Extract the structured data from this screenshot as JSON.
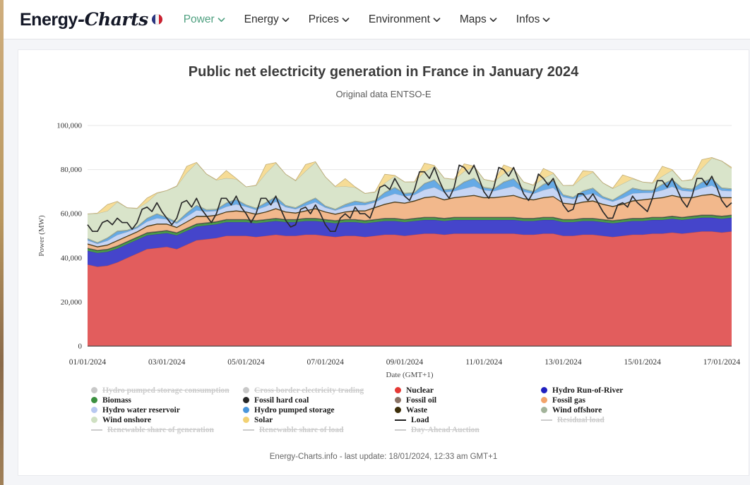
{
  "header": {
    "logo_bold": "Energy",
    "logo_italic": "-Charts",
    "flag": "french-flag",
    "accent_color": "#4fa080",
    "nav": [
      {
        "label": "Power",
        "active": true
      },
      {
        "label": "Energy",
        "active": false
      },
      {
        "label": "Prices",
        "active": false
      },
      {
        "label": "Environment",
        "active": false
      },
      {
        "label": "Maps",
        "active": false
      },
      {
        "label": "Infos",
        "active": false
      }
    ]
  },
  "chart_data": {
    "type": "area",
    "stacking": "normal",
    "title": "Public net electricity generation in France in January 2024",
    "subtitle": "Original data ENTSO-E",
    "ylabel": "Power (MW)",
    "xlabel": "Date (GMT+1)",
    "ylim": [
      0,
      100000
    ],
    "yticks": [
      "0",
      "20,000",
      "40,000",
      "60,000",
      "80,000",
      "100,000"
    ],
    "xtick_days": [
      0,
      2,
      4,
      6,
      8,
      10,
      12,
      14,
      16
    ],
    "xtick_labels": [
      "01/01/2024",
      "03/01/2024",
      "05/01/2024",
      "07/01/2024",
      "09/01/2024",
      "11/01/2024",
      "13/01/2024",
      "15/01/2024",
      "17/01/2024"
    ],
    "grid": true,
    "legend_position": "bottom",
    "values_unit": "GW",
    "days_span": 16.25,
    "step_days_areas": 0.25,
    "step_days_load": 0.125,
    "series": [
      {
        "name": "Nuclear",
        "color": "#e25d5d",
        "values": [
          37,
          36,
          36.5,
          38,
          40,
          42,
          44,
          44.5,
          45,
          44,
          46,
          48,
          48.5,
          49,
          50,
          50,
          50,
          49.5,
          50,
          50.5,
          50,
          50,
          50.5,
          50.5,
          50,
          49.5,
          50,
          50,
          49.5,
          50,
          50.5,
          50.5,
          50,
          50.5,
          51,
          51,
          50.5,
          51,
          51,
          51,
          51,
          51,
          51,
          51,
          50.5,
          50.5,
          51,
          51,
          50,
          50,
          50.5,
          50.5,
          50,
          49.5,
          50,
          50.5,
          50.5,
          51,
          51,
          51.5,
          51,
          51.5,
          52,
          52,
          51.5,
          52
        ]
      },
      {
        "name": "Hydro Run-of-River",
        "color": "#4545cb",
        "values": 6.2
      },
      {
        "name": "Biomass",
        "color": "#4a9a4a",
        "values": 1.0
      },
      {
        "name": "Fossil hard coal",
        "color": "#3a3a3a",
        "values": 0.15
      },
      {
        "name": "Fossil oil",
        "color": "#9a8a7e",
        "values": 0.25
      },
      {
        "name": "Fossil gas",
        "color": "#f2b88c",
        "values": [
          1.5,
          1.2,
          1.5,
          2,
          2,
          2,
          2.5,
          3,
          2.5,
          2,
          2.5,
          3,
          2.5,
          2.5,
          3,
          3.5,
          3,
          2.5,
          3,
          4,
          3,
          2.5,
          3,
          4,
          3,
          2.5,
          3,
          3.5,
          4,
          5,
          6,
          7,
          7,
          7.5,
          8.5,
          9,
          8,
          8.5,
          9,
          9.5,
          8.5,
          8.5,
          9,
          9.5,
          8.5,
          8,
          8.5,
          9,
          7,
          6.5,
          7,
          7.5,
          6.5,
          6,
          6.5,
          7.5,
          8,
          8,
          8.5,
          9,
          8.5,
          8,
          8.5,
          9,
          8,
          7.5
        ]
      },
      {
        "name": "Waste",
        "color": "#4a3a12",
        "values": 0.4
      },
      {
        "name": "Hydro water reservoir",
        "color": "#c6d5f4",
        "values": [
          1.5,
          1.2,
          1.8,
          2.4,
          1.8,
          1.5,
          2,
          2.5,
          2,
          1.6,
          2.2,
          2.6,
          2,
          1.8,
          2.2,
          2.8,
          2.2,
          1.8,
          2.4,
          3,
          2,
          1.6,
          2.2,
          2.8,
          1.8,
          1.5,
          2,
          2.5,
          2.5,
          2.2,
          3,
          3.6,
          3,
          2.6,
          3.4,
          4,
          3.2,
          2.8,
          3.4,
          4,
          3.2,
          2.8,
          3.4,
          4,
          3,
          2.6,
          3.2,
          3.8,
          2.6,
          2.2,
          2.8,
          3.2,
          2.4,
          2,
          2.6,
          3.2,
          3,
          2.6,
          3.2,
          3.8,
          3,
          2.6,
          3.2,
          3.8,
          3,
          2.8
        ]
      },
      {
        "name": "Hydro pumped storage",
        "color": "#66aae6",
        "values": [
          0.5,
          0.3,
          1,
          1.5,
          0.5,
          0.4,
          1.2,
          1.8,
          0.6,
          0.4,
          1.4,
          2,
          0.6,
          0.5,
          1.5,
          2,
          0.6,
          0.5,
          1.5,
          2,
          0.5,
          0.4,
          1.2,
          1.6,
          0.5,
          0.3,
          1,
          1.5,
          0.8,
          0.6,
          2,
          2.6,
          1,
          0.8,
          2.6,
          3.2,
          1,
          0.8,
          2.8,
          3.4,
          1,
          0.8,
          2.8,
          3.2,
          1,
          0.8,
          2.4,
          3,
          0.8,
          0.6,
          1.8,
          2.2,
          0.7,
          0.5,
          1.6,
          2.2,
          1,
          0.8,
          2.4,
          3,
          1,
          0.8,
          2.4,
          3,
          1,
          0.8
        ]
      },
      {
        "name": "Wind offshore",
        "color": "#aab9a3",
        "values": 0.4
      },
      {
        "name": "Wind onshore",
        "color": "#d9e4ca",
        "values": [
          11,
          13,
          12,
          13,
          10,
          8,
          7,
          9,
          12,
          16,
          18,
          19,
          16,
          13,
          11,
          9,
          8,
          10,
          13,
          15,
          14,
          12,
          14,
          16,
          13,
          10,
          8,
          6,
          4,
          3.5,
          4,
          5,
          5,
          4.5,
          5,
          6,
          5,
          4,
          4.5,
          5,
          3.5,
          3,
          3.5,
          4,
          3,
          2.5,
          2.5,
          3,
          4,
          5,
          6,
          7,
          6,
          5,
          4.5,
          4,
          3.5,
          3,
          3.5,
          4,
          3,
          4,
          6,
          9,
          12,
          9
        ]
      },
      {
        "name": "Solar",
        "color": "#f6dc96",
        "values": [
          0,
          0.2,
          3,
          0.3,
          0,
          0.2,
          2,
          0.3,
          0,
          0.2,
          3,
          0.3,
          0,
          0.2,
          3.5,
          0.3,
          0,
          0.2,
          4,
          0.3,
          0,
          0.2,
          3,
          0.3,
          0,
          0.2,
          3.5,
          0.3,
          0,
          0.2,
          4,
          0.3,
          0,
          0.2,
          4,
          0.3,
          0,
          0.2,
          3.5,
          0.3,
          0,
          0.2,
          4,
          0.3,
          0,
          0.2,
          4.5,
          0.3,
          0,
          0.2,
          3,
          0.3,
          0,
          0.2,
          4,
          0.3,
          0,
          0.2,
          4.5,
          0.3,
          0,
          0.2,
          4,
          0.3,
          0,
          0.5
        ]
      }
    ],
    "load_series": {
      "name": "Load",
      "color": "#2b2b2b",
      "values": [
        55,
        52,
        52,
        56,
        57,
        55,
        58,
        56,
        56,
        53,
        56,
        62,
        63,
        61,
        65,
        61,
        58,
        55,
        58,
        65,
        66,
        63,
        67,
        62,
        59,
        56,
        60,
        67,
        67,
        64,
        68,
        63,
        60,
        56,
        60,
        67,
        67,
        64,
        68,
        62,
        57,
        54,
        55,
        62,
        63,
        60,
        64,
        60,
        55,
        52,
        52,
        58,
        60,
        58,
        63,
        60,
        60,
        58,
        64,
        72,
        73,
        71,
        76,
        72,
        68,
        66,
        71,
        79,
        79,
        76,
        81,
        75,
        70,
        67,
        72,
        82,
        81,
        78,
        82,
        76,
        70,
        67,
        72,
        81,
        80,
        77,
        81,
        75,
        69,
        66,
        70,
        78,
        76,
        73,
        76,
        70,
        64,
        61,
        62,
        69,
        69,
        66,
        69,
        65,
        61,
        58,
        58,
        64,
        65,
        63,
        68,
        65,
        63,
        61,
        67,
        75,
        75,
        72,
        76,
        71,
        66,
        63,
        68,
        76,
        76,
        73,
        77,
        72,
        66,
        63,
        65
      ]
    }
  },
  "legend": {
    "items": [
      {
        "label": "Hydro pumped storage consumption",
        "symbol": "circle",
        "color": "#c8c8c8",
        "enabled": false
      },
      {
        "label": "Cross border electricity trading",
        "symbol": "circle",
        "color": "#c8c8c8",
        "enabled": false
      },
      {
        "label": "Nuclear",
        "symbol": "circle",
        "color": "#e53935",
        "enabled": true
      },
      {
        "label": "Hydro Run-of-River",
        "symbol": "circle",
        "color": "#2020c0",
        "enabled": true
      },
      {
        "label": "Biomass",
        "symbol": "circle",
        "color": "#3a8f3f",
        "enabled": true
      },
      {
        "label": "Fossil hard coal",
        "symbol": "circle",
        "color": "#262626",
        "enabled": true
      },
      {
        "label": "Fossil oil",
        "symbol": "circle",
        "color": "#8a7265",
        "enabled": true
      },
      {
        "label": "Fossil gas",
        "symbol": "circle",
        "color": "#f2a36a",
        "enabled": true
      },
      {
        "label": "Hydro water reservoir",
        "symbol": "circle",
        "color": "#b8c8f0",
        "enabled": true
      },
      {
        "label": "Hydro pumped storage",
        "symbol": "circle",
        "color": "#4a96db",
        "enabled": true
      },
      {
        "label": "Waste",
        "symbol": "circle",
        "color": "#3d2e0a",
        "enabled": true
      },
      {
        "label": "Wind offshore",
        "symbol": "circle",
        "color": "#a2b39a",
        "enabled": true
      },
      {
        "label": "Wind onshore",
        "symbol": "circle",
        "color": "#cfe0c2",
        "enabled": true
      },
      {
        "label": "Solar",
        "symbol": "circle",
        "color": "#f2d173",
        "enabled": true
      },
      {
        "label": "Load",
        "symbol": "line",
        "color": "#222222",
        "enabled": true
      },
      {
        "label": "Residual load",
        "symbol": "line",
        "color": "#cccccc",
        "enabled": false
      },
      {
        "label": "Renewable share of generation",
        "symbol": "line",
        "color": "#cccccc",
        "enabled": false
      },
      {
        "label": "Renewable share of load",
        "symbol": "line",
        "color": "#cccccc",
        "enabled": false
      },
      {
        "label": "Day-Ahead Auction",
        "symbol": "line",
        "color": "#cccccc",
        "enabled": false
      }
    ]
  },
  "footer": {
    "credit": "Energy-Charts.info - last update: 18/01/2024, 12:33 am GMT+1"
  }
}
